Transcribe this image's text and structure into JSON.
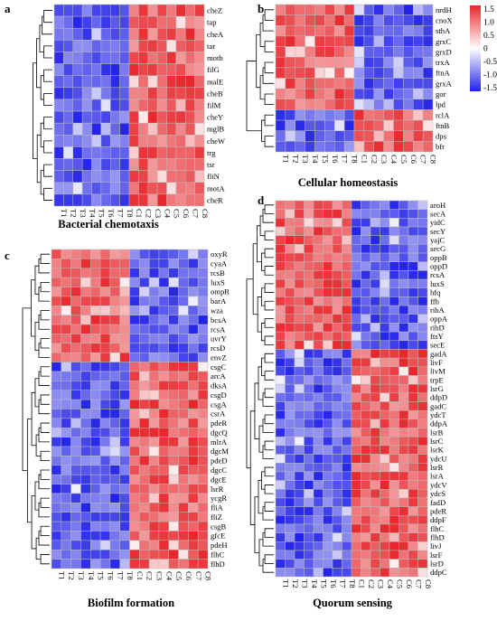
{
  "chart_data": [
    {
      "type": "heatmap",
      "panel": "a",
      "title": "Bacterial chemotaxis",
      "columns": [
        "T1",
        "T2",
        "T3",
        "T4",
        "T5",
        "T6",
        "T7",
        "T8",
        "C1",
        "C2",
        "C3",
        "C4",
        "C5",
        "C6",
        "C7",
        "C8"
      ],
      "rows": [
        "cheZ",
        "tap",
        "cheA",
        "tar",
        "motb",
        "filG",
        "malE",
        "cheB",
        "filM",
        "cheY",
        "mglB",
        "cheW",
        "trg",
        "tsr",
        "fliN",
        "motA",
        "cheR"
      ],
      "pattern": "T low (blue), C high (red)",
      "value_range": [
        -1.5,
        1.5
      ]
    },
    {
      "type": "heatmap",
      "panel": "b",
      "title": "Cellular homeostasis",
      "columns": [
        "T1",
        "T2",
        "T3",
        "T4",
        "T5",
        "T6",
        "T7",
        "T8",
        "C1",
        "C2",
        "C3",
        "C4",
        "C5",
        "C6",
        "C7",
        "C8"
      ],
      "rows": [
        "nrdH",
        "cnoX",
        "sthA",
        "grxC",
        "grxD",
        "trxA",
        "ftnA",
        "grxA",
        "gor",
        "lpd",
        "rclA",
        "ftnB",
        "dps",
        "bfr"
      ],
      "pattern": "first 10 rows T high / C low; last 4 rows T low / C high",
      "value_range": [
        -1.5,
        1.5
      ]
    },
    {
      "type": "heatmap",
      "panel": "c",
      "title": "Biofilm formation",
      "columns": [
        "T1",
        "T2",
        "T3",
        "T4",
        "T5",
        "T6",
        "T7",
        "T8",
        "C1",
        "C2",
        "C3",
        "C4",
        "C5",
        "C6",
        "C7",
        "C8"
      ],
      "rows": [
        "oxyR",
        "cyaA",
        "rcsB",
        "luxS",
        "ompR",
        "barA",
        "wza",
        "bcsA",
        "rcsA",
        "uvrY",
        "rcsD",
        "envZ",
        "csgC",
        "arcA",
        "dksA",
        "csgD",
        "csgA",
        "csrA",
        "pdeR",
        "dgcQ",
        "mlrA",
        "dgcM",
        "pdeD",
        "dgcC",
        "dgcE",
        "lsrR",
        "ycgR",
        "fliA",
        "fliZ",
        "csgB",
        "gfcE",
        "pdeH",
        "flhC",
        "flhD"
      ],
      "pattern": "first 12 rows T high / C low; remaining rows T low / C high",
      "value_range": [
        -1.5,
        1.5
      ]
    },
    {
      "type": "heatmap",
      "panel": "d",
      "title": "Quorum sensing",
      "columns": [
        "T1",
        "T2",
        "T3",
        "T4",
        "T5",
        "T6",
        "T7",
        "T8",
        "C1",
        "C2",
        "C3",
        "C4",
        "C5",
        "C6",
        "C7",
        "C8"
      ],
      "rows": [
        "aroH",
        "secA",
        "yidC",
        "secY",
        "yajC",
        "secG",
        "oppB",
        "oppD",
        "rcsA",
        "luxS",
        "hfq",
        "ffh",
        "ribA",
        "oppA",
        "ribD",
        "ftsY",
        "secE",
        "gadA",
        "livF",
        "livM",
        "trpE",
        "lsrG",
        "ddpD",
        "gadC",
        "ydcT",
        "ddpA",
        "lsrB",
        "lsrC",
        "lsrK",
        "ydcU",
        "lsrR",
        "lsrA",
        "ydcV",
        "ydcS",
        "fadD",
        "pdeR",
        "ddpF",
        "flhC",
        "flhD",
        "livJ",
        "lsrF",
        "lsrD",
        "ddpC"
      ],
      "pattern": "first 17 rows T high / C low; remaining rows T low / C high",
      "value_range": [
        -1.5,
        1.5
      ]
    }
  ],
  "colorbar": {
    "ticks": [
      "1.5",
      "1.0",
      "0.5",
      "0",
      "-0.5",
      "-1.0",
      "-1.5"
    ],
    "colors": {
      "high": "#e8262b",
      "mid": "#ffffff",
      "low": "#2323e8"
    }
  }
}
